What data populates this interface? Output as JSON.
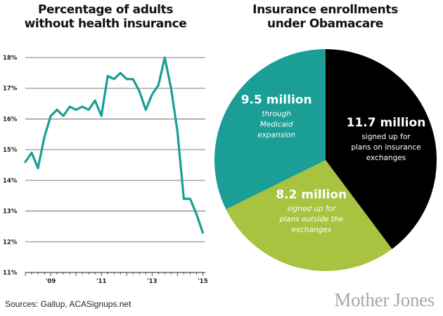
{
  "chart_data": [
    {
      "type": "line",
      "title": "Percentage of adults without health insurance",
      "title_lines": [
        "Percentage of adults",
        "without health insurance"
      ],
      "xlabel": "",
      "ylabel": "",
      "ylim": [
        11,
        18
      ],
      "ytick_labels": [
        "11%",
        "12%",
        "13%",
        "14%",
        "15%",
        "16%",
        "17%",
        "18%"
      ],
      "xlim": [
        2008.0,
        2015.1
      ],
      "xtick_values": [
        2009,
        2011,
        2013,
        2015
      ],
      "xtick_labels": [
        "'09",
        "'11",
        "'13",
        "'15"
      ],
      "grid": true,
      "color": "#1a9e96",
      "series": [
        {
          "x": [
            2008.0,
            2008.25,
            2008.5,
            2008.75,
            2009.0,
            2009.25,
            2009.5,
            2009.75,
            2010.0,
            2010.25,
            2010.5,
            2010.75,
            2011.0,
            2011.25,
            2011.5,
            2011.75,
            2012.0,
            2012.25,
            2012.5,
            2012.75,
            2013.0,
            2013.25,
            2013.5,
            2013.75,
            2014.0,
            2014.25,
            2014.5,
            2014.75,
            2015.0
          ],
          "y": [
            14.6,
            14.9,
            14.4,
            15.4,
            16.1,
            16.3,
            16.1,
            16.4,
            16.3,
            16.4,
            16.3,
            16.6,
            16.1,
            17.4,
            17.3,
            17.5,
            17.3,
            17.3,
            16.9,
            16.3,
            16.8,
            17.1,
            18.0,
            17.0,
            15.6,
            13.4,
            13.4,
            12.9,
            12.3
          ]
        }
      ]
    },
    {
      "type": "pie",
      "title": "Insurance enrollments under Obamacare",
      "title_lines": [
        "Insurance enrollments",
        "under Obamacare"
      ],
      "slices": [
        {
          "value": 11.7,
          "label": "11.7 million",
          "lines": [
            "signed up for",
            "plans on insurance",
            "exchanges"
          ],
          "color": "#000000",
          "text_color": "#ffffff",
          "italic": false
        },
        {
          "value": 8.2,
          "label": "8.2 million",
          "lines": [
            "signed up for",
            "plans outside the",
            "exchanges"
          ],
          "color": "#a9c23f",
          "text_color": "#ffffff",
          "italic": true
        },
        {
          "value": 9.5,
          "label": "9.5 million",
          "lines": [
            "through",
            "Medicaid",
            "expansion"
          ],
          "color": "#1a9e96",
          "text_color": "#ffffff",
          "italic": true
        }
      ]
    }
  ],
  "footer": {
    "source": "Sources: Gallup, ACASignups.net",
    "brand": "Mother Jones"
  }
}
